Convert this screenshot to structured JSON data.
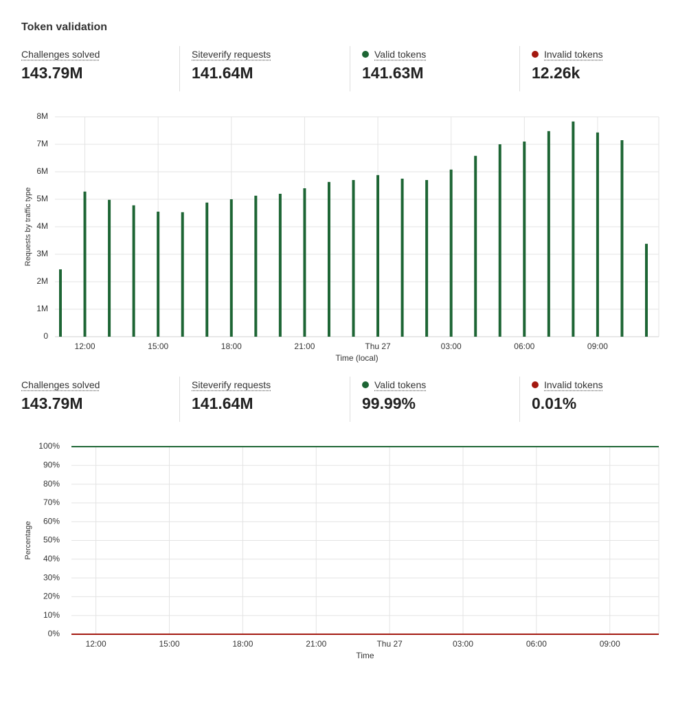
{
  "title": "Token validation",
  "stats_top": [
    {
      "label": "Challenges solved",
      "value": "143.79M"
    },
    {
      "label": "Siteverify requests",
      "value": "141.64M"
    },
    {
      "label": "Valid tokens",
      "value": "141.63M"
    },
    {
      "label": "Invalid tokens",
      "value": "12.26k"
    }
  ],
  "stats_bottom": [
    {
      "label": "Challenges solved",
      "value": "143.79M"
    },
    {
      "label": "Siteverify requests",
      "value": "141.64M"
    },
    {
      "label": "Valid tokens",
      "value": "99.99%"
    },
    {
      "label": "Invalid tokens",
      "value": "0.01%"
    }
  ],
  "chart_data": [
    {
      "type": "bar",
      "x_label": "Time (local)",
      "y_label": "Requests by traffic type",
      "categories": [
        null,
        "12:00",
        null,
        null,
        "15:00",
        null,
        null,
        "18:00",
        null,
        null,
        "21:00",
        null,
        null,
        "Thu 27",
        null,
        null,
        "03:00",
        null,
        null,
        "06:00",
        null,
        null,
        "09:00",
        null,
        null
      ],
      "values": [
        2450000,
        5280000,
        4980000,
        4780000,
        4550000,
        4530000,
        4880000,
        5000000,
        5130000,
        5200000,
        5400000,
        5630000,
        5700000,
        5880000,
        5750000,
        5700000,
        6080000,
        6580000,
        7000000,
        7100000,
        7480000,
        7830000,
        7430000,
        7150000,
        3380000
      ],
      "color": "#1d6534",
      "ylim": [
        0,
        8000000
      ],
      "yticks": [
        0,
        {
          "value": 1000000,
          "label": "1M"
        },
        {
          "value": 2000000,
          "label": "2M"
        },
        {
          "value": 3000000,
          "label": "3M"
        },
        {
          "value": 4000000,
          "label": "4M"
        },
        {
          "value": 5000000,
          "label": "5M"
        },
        {
          "value": 6000000,
          "label": "6M"
        },
        {
          "value": 7000000,
          "label": "7M"
        },
        {
          "value": 8000000,
          "label": "8M"
        }
      ],
      "grid": true
    },
    {
      "type": "line",
      "x_label": "Time",
      "y_label": "Percentage",
      "categories": [
        null,
        "12:00",
        null,
        null,
        "15:00",
        null,
        null,
        "18:00",
        null,
        null,
        "21:00",
        null,
        null,
        "Thu 27",
        null,
        null,
        "03:00",
        null,
        null,
        "06:00",
        null,
        null,
        "09:00",
        null,
        null
      ],
      "series": [
        {
          "color": "#1d6534",
          "values": [
            99.99,
            99.99,
            99.99,
            99.99,
            99.99,
            99.99,
            99.99,
            99.99,
            99.99,
            99.99,
            99.99,
            99.99,
            99.99,
            99.99,
            99.99,
            99.99,
            99.99,
            99.99,
            99.99,
            99.99,
            99.99,
            99.99,
            99.99,
            99.99,
            99.99
          ]
        },
        {
          "color": "#a3180f",
          "values": [
            0.01,
            0.01,
            0.01,
            0.01,
            0.01,
            0.01,
            0.01,
            0.01,
            0.01,
            0.01,
            0.01,
            0.01,
            0.01,
            0.01,
            0.01,
            0.01,
            0.01,
            0.01,
            0.01,
            0.01,
            0.01,
            0.01,
            0.01,
            0.01,
            0.01
          ]
        }
      ],
      "ylim": [
        0,
        100
      ],
      "yticks": [
        {
          "value": 0,
          "label": "0%"
        },
        {
          "value": 10,
          "label": "10%"
        },
        {
          "value": 20,
          "label": "20%"
        },
        {
          "value": 30,
          "label": "30%"
        },
        {
          "value": 40,
          "label": "40%"
        },
        {
          "value": 50,
          "label": "50%"
        },
        {
          "value": 60,
          "label": "60%"
        },
        {
          "value": 70,
          "label": "70%"
        },
        {
          "value": 80,
          "label": "80%"
        },
        {
          "value": 90,
          "label": "90%"
        },
        {
          "value": 100,
          "label": "100%"
        }
      ],
      "grid": true
    }
  ]
}
